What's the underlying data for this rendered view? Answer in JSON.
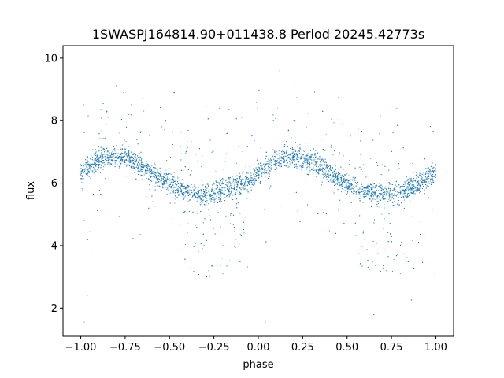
{
  "chart_data": {
    "type": "scatter",
    "title": "1SWASPJ164814.90+011438.8 Period 20245.42773s",
    "xlabel": "phase",
    "ylabel": "flux",
    "xlim": [
      -1.1,
      1.1
    ],
    "ylim": [
      1.1,
      10.4
    ],
    "xticks": [
      -1.0,
      -0.75,
      -0.5,
      -0.25,
      0.0,
      0.25,
      0.5,
      0.75,
      1.0
    ],
    "xtick_labels": [
      "−1.00",
      "−0.75",
      "−0.50",
      "−0.25",
      "0.00",
      "0.25",
      "0.50",
      "0.75",
      "1.00"
    ],
    "yticks": [
      2,
      4,
      6,
      8,
      10
    ],
    "ytick_labels": [
      "2",
      "4",
      "6",
      "8",
      "10"
    ],
    "grid": false,
    "marker_color": "#1f77b4",
    "light_curve": {
      "phase_range": [
        -1.0,
        1.0
      ],
      "period_in_phase": 1.0,
      "baseline_flux": 6.2,
      "semi_amplitude": 0.6,
      "max_phase": -0.8,
      "min_phase": -0.3,
      "scatter": 0.17,
      "point_count": 7000
    },
    "sample_points": [
      {
        "x": -1.0,
        "y": 6.6
      },
      {
        "x": -0.9,
        "y": 6.75
      },
      {
        "x": -0.8,
        "y": 6.85
      },
      {
        "x": -0.7,
        "y": 6.75
      },
      {
        "x": -0.6,
        "y": 6.55
      },
      {
        "x": -0.5,
        "y": 6.3
      },
      {
        "x": -0.4,
        "y": 5.9
      },
      {
        "x": -0.3,
        "y": 5.6
      },
      {
        "x": -0.2,
        "y": 5.75
      },
      {
        "x": -0.1,
        "y": 6.2
      },
      {
        "x": 0.0,
        "y": 6.6
      },
      {
        "x": 0.1,
        "y": 6.75
      },
      {
        "x": 0.2,
        "y": 6.85
      },
      {
        "x": 0.3,
        "y": 6.75
      },
      {
        "x": 0.4,
        "y": 6.55
      },
      {
        "x": 0.5,
        "y": 6.3
      },
      {
        "x": 0.6,
        "y": 5.9
      },
      {
        "x": 0.7,
        "y": 5.6
      },
      {
        "x": 0.8,
        "y": 5.75
      },
      {
        "x": 0.9,
        "y": 6.2
      },
      {
        "x": 1.0,
        "y": 6.6
      },
      {
        "x": -0.28,
        "y": 3.2
      },
      {
        "x": -0.2,
        "y": 3.1
      },
      {
        "x": 0.72,
        "y": 3.2
      },
      {
        "x": 0.8,
        "y": 3.1
      },
      {
        "x": -0.88,
        "y": 9.6
      },
      {
        "x": 0.12,
        "y": 9.6
      },
      {
        "x": -0.98,
        "y": 1.55
      },
      {
        "x": 0.04,
        "y": 1.55
      },
      {
        "x": -0.72,
        "y": 2.55
      },
      {
        "x": 0.28,
        "y": 2.55
      },
      {
        "x": -0.22,
        "y": 8.4
      },
      {
        "x": 0.78,
        "y": 8.4
      }
    ]
  }
}
